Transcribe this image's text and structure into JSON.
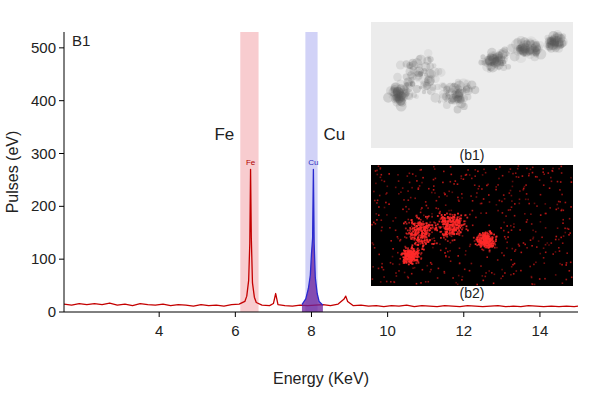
{
  "chart_data": {
    "type": "line",
    "title": "B1",
    "x_label": "Energy (KeV)",
    "y_label": "Pulses (eV)",
    "xlim": [
      1.5,
      15
    ],
    "xticks": [
      4,
      6,
      8,
      10,
      12,
      14
    ],
    "ylim": [
      0,
      530
    ],
    "yticks": [
      0,
      100,
      200,
      300,
      400,
      500
    ],
    "grid": false,
    "series": [
      {
        "color": "#c40000",
        "x": [
          1.5,
          1.7,
          1.9,
          2.1,
          2.3,
          2.5,
          2.7,
          2.9,
          3.1,
          3.3,
          3.5,
          3.7,
          3.9,
          4.1,
          4.3,
          4.5,
          4.7,
          4.9,
          5.1,
          5.3,
          5.5,
          5.7,
          5.9,
          6.1,
          6.25,
          6.3,
          6.35,
          6.38,
          6.4,
          6.42,
          6.45,
          6.5,
          6.55,
          6.7,
          6.9,
          7.0,
          7.06,
          7.12,
          7.3,
          7.5,
          7.7,
          7.9,
          8.1,
          8.3,
          8.5,
          8.7,
          8.85,
          8.9,
          8.95,
          9.1,
          9.3,
          9.5,
          9.7,
          9.9,
          10.1,
          10.3,
          10.5,
          10.7,
          10.9,
          11.1,
          11.3,
          11.5,
          11.7,
          11.9,
          12.1,
          12.3,
          12.5,
          12.7,
          12.9,
          13.1,
          13.3,
          13.5,
          13.7,
          13.9,
          14.1,
          14.3,
          14.5,
          14.7,
          14.9,
          15.0
        ],
        "values": [
          15,
          13,
          16,
          14,
          16,
          14,
          17,
          13,
          15,
          12,
          16,
          14,
          13,
          15,
          12,
          14,
          13,
          11,
          14,
          12,
          13,
          11,
          14,
          15,
          20,
          30,
          60,
          130,
          270,
          140,
          55,
          28,
          18,
          13,
          12,
          16,
          35,
          14,
          12,
          11,
          13,
          12,
          13,
          14,
          12,
          15,
          24,
          30,
          20,
          12,
          13,
          11,
          12,
          10,
          12,
          11,
          13,
          10,
          12,
          11,
          10,
          12,
          11,
          10,
          12,
          11,
          10,
          11,
          12,
          10,
          11,
          10,
          12,
          11,
          10,
          11,
          10,
          11,
          10,
          11
        ]
      },
      {
        "color": "#2a2ad0",
        "x": [
          7.75,
          7.85,
          7.92,
          7.97,
          8.0,
          8.03,
          8.05,
          8.07,
          8.1,
          8.15,
          8.2,
          8.3
        ],
        "values": [
          14,
          25,
          45,
          70,
          110,
          140,
          270,
          130,
          65,
          35,
          20,
          13
        ]
      }
    ],
    "bands": [
      {
        "label": "Fe",
        "range": [
          6.13,
          6.61
        ],
        "color": "#f7c3c7"
      },
      {
        "label": "Cu",
        "range": [
          7.84,
          8.16
        ],
        "color": "#c9caf6"
      }
    ],
    "annotations": [
      {
        "text": "Fe",
        "x": 6.4,
        "y": 276,
        "color": "#b00000"
      },
      {
        "text": "Cu",
        "x": 8.05,
        "y": 276,
        "color": "#3030c0"
      }
    ],
    "insets": [
      {
        "label": "(b1)"
      },
      {
        "label": "(b2)"
      }
    ]
  }
}
